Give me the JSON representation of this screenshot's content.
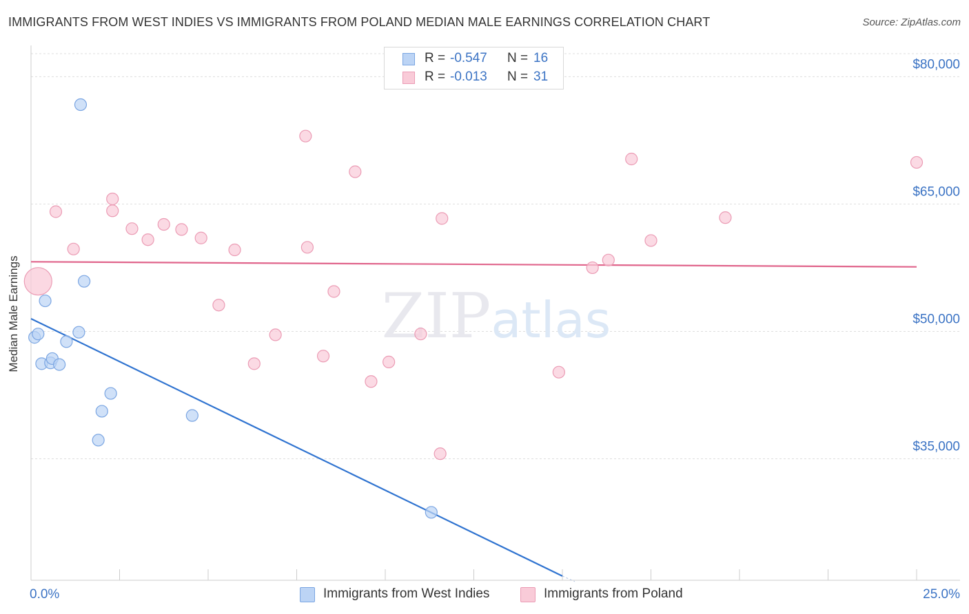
{
  "header": {
    "title": "IMMIGRANTS FROM WEST INDIES VS IMMIGRANTS FROM POLAND MEDIAN MALE EARNINGS CORRELATION CHART",
    "source": "Source: ZipAtlas.com"
  },
  "watermark": "ZIPatlas",
  "stats": [
    {
      "r_label": "R =",
      "r_value": "-0.547",
      "n_label": "N =",
      "n_value": "16"
    },
    {
      "r_label": "R =",
      "r_value": "-0.013",
      "n_label": "N =",
      "n_value": "31"
    }
  ],
  "legend": [
    {
      "label": "Immigrants from West Indies"
    },
    {
      "label": "Immigrants from Poland"
    }
  ],
  "colors": {
    "west_indies_fill": "#bcd4f5",
    "west_indies_stroke": "#7aa5e2",
    "west_indies_line": "#2f73d0",
    "poland_fill": "#f9cbd8",
    "poland_stroke": "#eb9bb4",
    "poland_line": "#e0648b",
    "axis_text": "#3b73c4",
    "grid": "#dddddd"
  },
  "chart_data": {
    "type": "scatter",
    "title": "IMMIGRANTS FROM WEST INDIES VS IMMIGRANTS FROM POLAND MEDIAN MALE EARNINGS CORRELATION CHART",
    "xlabel": "",
    "ylabel": "Median Male Earnings",
    "xlim": [
      0,
      25
    ],
    "ylim": [
      20700,
      82700
    ],
    "x_tick_labels": [
      "0.0%",
      "25.0%"
    ],
    "y_ticks": [
      35000,
      50000,
      65000,
      80000
    ],
    "y_tick_labels": [
      "$35,000",
      "$50,000",
      "$65,000",
      "$80,000"
    ],
    "series": [
      {
        "name": "Immigrants from West Indies",
        "points": [
          [
            0.1,
            49300
          ],
          [
            0.2,
            49700
          ],
          [
            0.3,
            46200
          ],
          [
            0.4,
            53600
          ],
          [
            0.55,
            46300
          ],
          [
            0.6,
            46800
          ],
          [
            0.8,
            46100
          ],
          [
            1.0,
            48800
          ],
          [
            1.35,
            49900
          ],
          [
            1.4,
            76700
          ],
          [
            1.5,
            55900
          ],
          [
            1.9,
            37200
          ],
          [
            2.0,
            40600
          ],
          [
            2.25,
            42700
          ],
          [
            4.55,
            40100
          ],
          [
            11.3,
            28700
          ]
        ],
        "trend": {
          "x": [
            0.0,
            15.0
          ],
          "y": [
            51500,
            21200
          ]
        }
      },
      {
        "name": "Immigrants from Poland",
        "points": [
          [
            0.2,
            55900
          ],
          [
            0.7,
            64100
          ],
          [
            1.2,
            59700
          ],
          [
            2.3,
            64200
          ],
          [
            2.3,
            65600
          ],
          [
            2.85,
            62100
          ],
          [
            3.3,
            60800
          ],
          [
            3.75,
            62600
          ],
          [
            4.25,
            62000
          ],
          [
            4.8,
            61000
          ],
          [
            5.3,
            53100
          ],
          [
            5.75,
            59600
          ],
          [
            6.3,
            46200
          ],
          [
            6.9,
            49600
          ],
          [
            7.75,
            73000
          ],
          [
            7.8,
            59900
          ],
          [
            8.25,
            47100
          ],
          [
            8.55,
            54700
          ],
          [
            9.15,
            68800
          ],
          [
            9.6,
            44100
          ],
          [
            10.1,
            46400
          ],
          [
            11.0,
            49700
          ],
          [
            11.55,
            35600
          ],
          [
            11.6,
            63300
          ],
          [
            14.9,
            45200
          ],
          [
            15.85,
            57500
          ],
          [
            16.3,
            58400
          ],
          [
            16.95,
            70300
          ],
          [
            17.5,
            60700
          ],
          [
            19.6,
            63400
          ],
          [
            25.0,
            69900
          ]
        ],
        "trend": {
          "x": [
            0.0,
            25.0
          ],
          "y": [
            58200,
            57600
          ]
        }
      }
    ]
  }
}
